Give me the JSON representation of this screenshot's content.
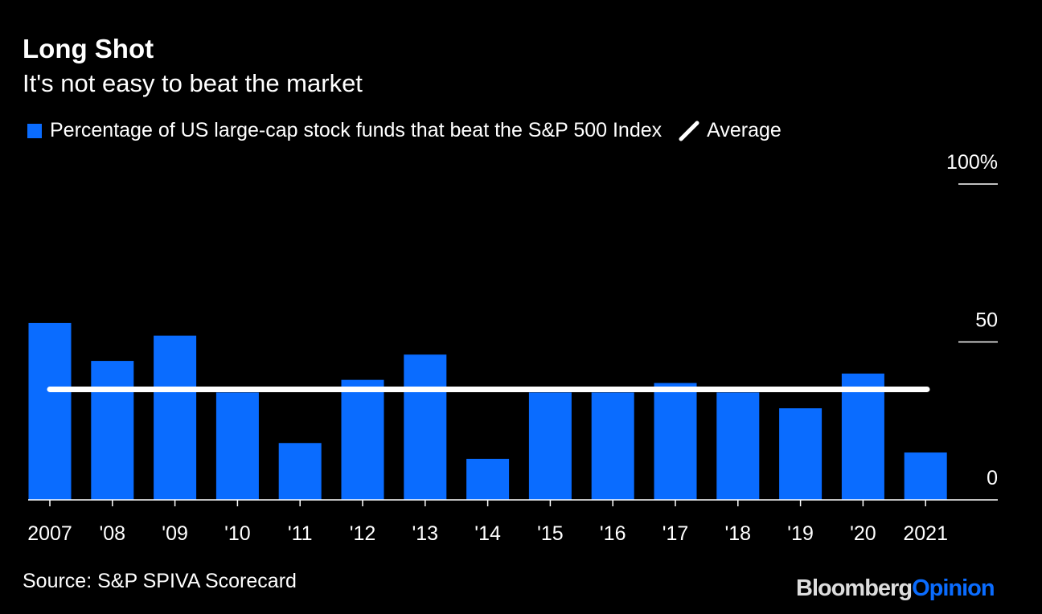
{
  "header": {
    "title": "Long Shot",
    "subtitle": "It's not easy to beat the market"
  },
  "legend": {
    "bars": "Percentage of US large-cap stock funds that beat the S&P 500 Index",
    "line": "Average"
  },
  "footer": {
    "source": "Source: S&P SPIVA Scorecard",
    "logo_a": "Bloomberg",
    "logo_b": "Opinion"
  },
  "colors": {
    "bar": "#0a6cff",
    "line": "#ffffff",
    "background": "#000000"
  },
  "chart_data": {
    "type": "bar",
    "categories": [
      "2007",
      "'08",
      "'09",
      "'10",
      "'11",
      "'12",
      "'13",
      "'14",
      "'15",
      "'16",
      "'17",
      "'18",
      "'19",
      "'20",
      "2021"
    ],
    "series": [
      {
        "name": "Percentage of US large-cap stock funds that beat the S&P 500 Index",
        "values": [
          56,
          44,
          52,
          34,
          18,
          38,
          46,
          13,
          34,
          34,
          37,
          34,
          29,
          40,
          15
        ]
      }
    ],
    "average": 35,
    "ylim": [
      0,
      100
    ],
    "yticks": [
      "0",
      "50",
      "100%"
    ],
    "ytick_values": [
      0,
      50,
      100
    ],
    "grid": false
  }
}
